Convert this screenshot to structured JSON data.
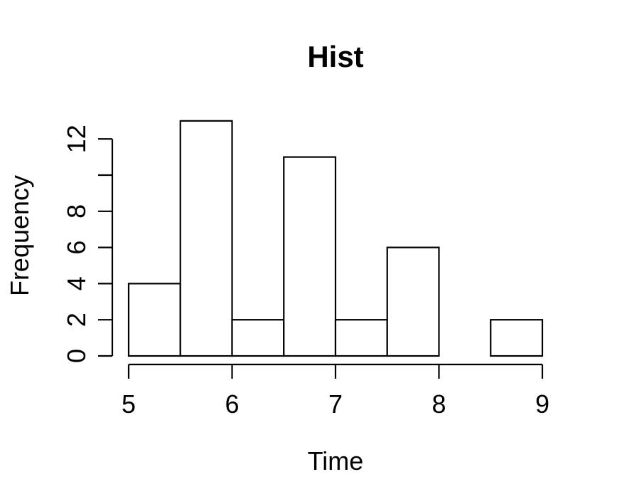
{
  "window": {
    "background": "#ffffff"
  },
  "chart_data": {
    "type": "bar",
    "subtype": "histogram",
    "title": "Hist",
    "xlabel": "Time",
    "ylabel": "Frequency",
    "bin_edges": [
      5,
      5.5,
      6,
      6.5,
      7,
      7.5,
      8,
      8.5,
      9
    ],
    "frequencies": [
      4,
      13,
      2,
      11,
      2,
      6,
      0,
      2
    ],
    "x_ticks": [
      5,
      6,
      7,
      8,
      9
    ],
    "y_ticks": [
      0,
      2,
      4,
      6,
      8,
      10,
      12
    ],
    "y_tick_labels": [
      "0",
      "2",
      "4",
      "6",
      "8",
      "",
      "12"
    ],
    "xlim": [
      5,
      9
    ],
    "ylim": [
      0,
      13
    ],
    "grid": false,
    "legend": null,
    "bar_fill": "#ffffff",
    "bar_stroke": "#000000",
    "axis_color": "#000000",
    "text_color": "#000000",
    "background": "#ffffff"
  }
}
